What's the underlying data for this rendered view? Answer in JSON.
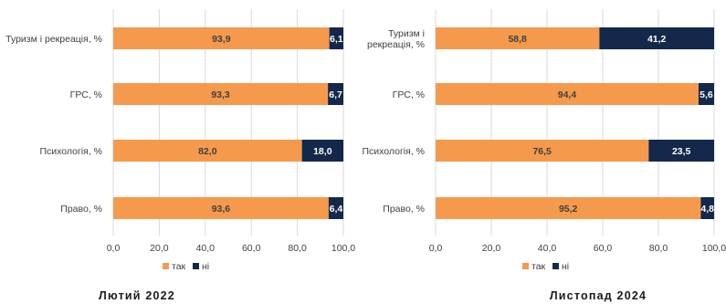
{
  "colors": {
    "yes": "#F59A4C",
    "no": "#13284A",
    "grid": "#D9D9D9"
  },
  "chart_data": [
    {
      "type": "bar",
      "orientation": "horizontal",
      "stacked": true,
      "caption": "Лютий 2022",
      "categories": [
        [
          "Туризм і рекреація, %"
        ],
        [
          "ГРС, %"
        ],
        [
          "Психологія, %"
        ],
        [
          "Право, %"
        ]
      ],
      "series": [
        {
          "name": "так",
          "values": [
            93.9,
            93.3,
            82.0,
            93.6
          ],
          "labels": [
            "93,9",
            "93,3",
            "82,0",
            "93,6"
          ]
        },
        {
          "name": "ні",
          "values": [
            6.1,
            6.7,
            18.0,
            6.4
          ],
          "labels": [
            "6,1",
            "6,7",
            "18,0",
            "6,4"
          ]
        }
      ],
      "xlim": [
        0,
        100
      ],
      "xticks": [
        "0,0",
        "20,0",
        "40,0",
        "60,0",
        "80,0",
        "100,0"
      ],
      "grid": true,
      "legend": "bottom"
    },
    {
      "type": "bar",
      "orientation": "horizontal",
      "stacked": true,
      "caption": "Листопад 2024",
      "categories": [
        [
          "Туризм і",
          "рекреація, %"
        ],
        [
          "ГРС, %"
        ],
        [
          "Психологія, %"
        ],
        [
          "Право, %"
        ]
      ],
      "series": [
        {
          "name": "так",
          "values": [
            58.8,
            94.4,
            76.5,
            95.2
          ],
          "labels": [
            "58,8",
            "94,4",
            "76,5",
            "95,2"
          ]
        },
        {
          "name": "ні",
          "values": [
            41.2,
            5.6,
            23.5,
            4.8
          ],
          "labels": [
            "41,2",
            "5,6",
            "23,5",
            "4,8"
          ]
        }
      ],
      "xlim": [
        0,
        100
      ],
      "xticks": [
        "0,0",
        "20,0",
        "40,0",
        "60,0",
        "80,0",
        "100,0"
      ],
      "grid": true,
      "legend": "bottom"
    }
  ]
}
